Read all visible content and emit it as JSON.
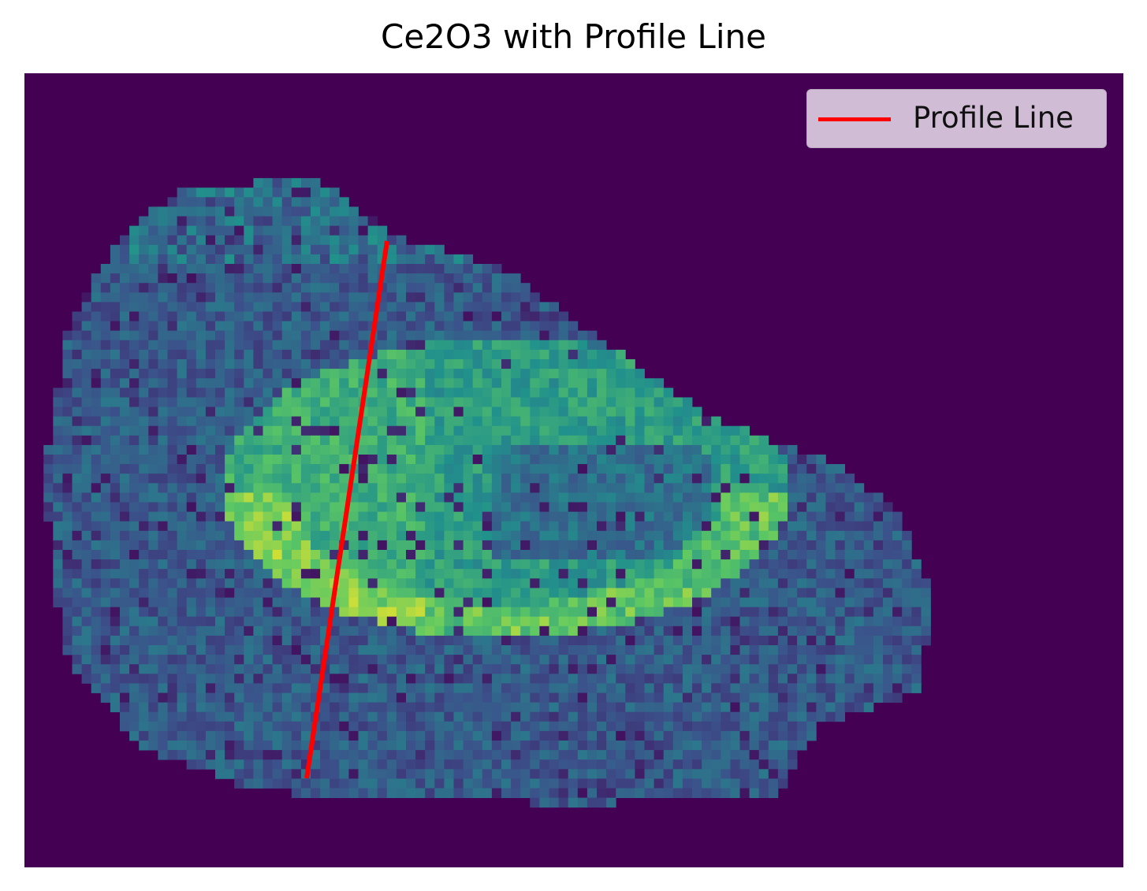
{
  "chart_data": {
    "type": "heatmap",
    "title": "Ce2O3 with Profile Line",
    "colormap": "viridis",
    "axes_visible": false,
    "legend": {
      "placement": "top-right",
      "entries": [
        {
          "name": "Profile Line",
          "color": "#ff0000"
        }
      ]
    },
    "profile_line": {
      "name": "Profile Line",
      "color": "#ff0000"
    }
  }
}
